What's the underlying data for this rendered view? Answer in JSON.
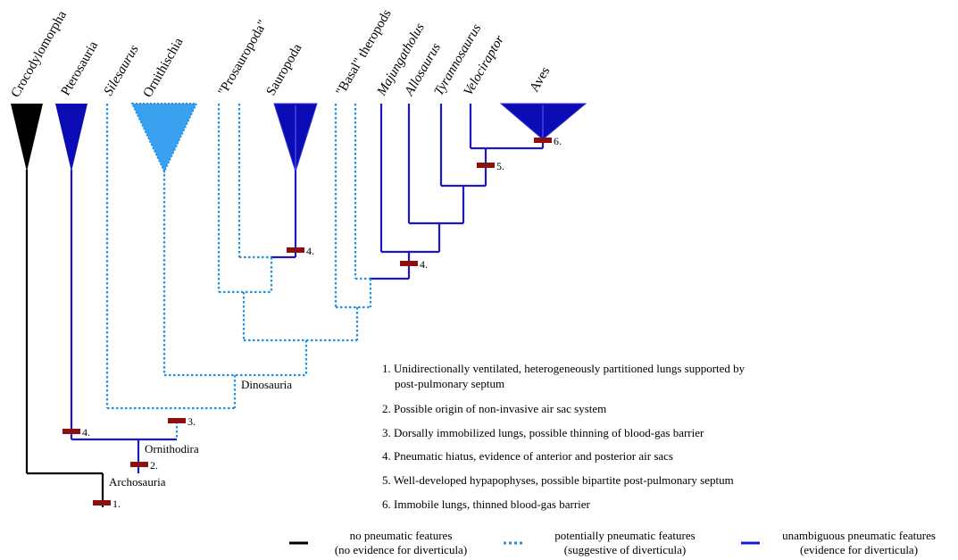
{
  "colors": {
    "none": "#000000",
    "potential": "#1e90e6",
    "unambiguous": "#1c18c8",
    "crocodylomorpha_fill": "#000000",
    "pterosauria_fill": "#0c0cb4",
    "ornithischia_fill": "#3aa0f0",
    "sauropoda_fill": "#0c0cb4",
    "aves_fill": "#0c0cb4",
    "event_marker": "#8b1010"
  },
  "taxa": [
    {
      "label": "Crocodylomorpha",
      "italic": false
    },
    {
      "label": "Pterosauria",
      "italic": false
    },
    {
      "label": "Silesaurus",
      "italic": true
    },
    {
      "label": "Ornithischia",
      "italic": false
    },
    {
      "label": "\"Prosauropoda\"",
      "italic": false
    },
    {
      "label": "Sauropoda",
      "italic": false
    },
    {
      "label": "\"Basal\" theropods",
      "italic": false
    },
    {
      "label": "Majungatholus",
      "italic": true
    },
    {
      "label": "Allosaurus",
      "italic": true
    },
    {
      "label": "Tyrannosaurus",
      "italic": true
    },
    {
      "label": "Velociraptor",
      "italic": true
    },
    {
      "label": "Aves",
      "italic": false
    }
  ],
  "clades": {
    "archosauria": "Archosauria",
    "ornithodira": "Ornithodira",
    "dinosauria": "Dinosauria"
  },
  "event_labels": {
    "e1": "1.",
    "e2": "2.",
    "e3": "3.",
    "e4_pterosauria": "4.",
    "e4_sauropoda": "4.",
    "e4_theropoda": "4.",
    "e5": "5.",
    "e6": "6."
  },
  "notes": [
    {
      "number": "1.",
      "lines": [
        "1. Unidirectionally ventilated, heterogeneously partitioned lungs supported by",
        "post-pulmonary septum"
      ]
    },
    {
      "number": "2.",
      "lines": [
        "2. Possible origin of non-invasive air sac system"
      ]
    },
    {
      "number": "3.",
      "lines": [
        "3. Dorsally immobilized lungs, possible thinning of blood-gas barrier"
      ]
    },
    {
      "number": "4.",
      "lines": [
        "4. Pneumatic hiatus, evidence of anterior and posterior air sacs"
      ]
    },
    {
      "number": "5.",
      "lines": [
        "5. Well-developed hypapophyses, possible bipartite post-pulmonary septum"
      ]
    },
    {
      "number": "6.",
      "lines": [
        "6. Immobile lungs, thinned blood-gas barrier"
      ]
    }
  ],
  "legend": [
    {
      "style": "solid-black",
      "line1": "no pneumatic features",
      "line2": "(no evidence for diverticula)"
    },
    {
      "style": "dotted-light-blue",
      "line1": "potentially pneumatic features",
      "line2": "(suggestive of diverticula)"
    },
    {
      "style": "solid-blue",
      "line1": "unambiguous pneumatic features",
      "line2": "(evidence for diverticula)"
    }
  ]
}
